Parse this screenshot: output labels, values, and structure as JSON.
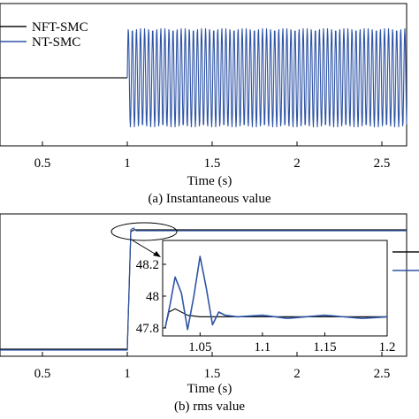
{
  "panels": [
    {
      "caption": "(a) Instantaneous value",
      "xlabel": "Time (s)",
      "xticks": [
        "0.5",
        "1",
        "1.5",
        "2",
        "2.5"
      ],
      "legend": [
        "NFT-SMC",
        "NT-SMC"
      ]
    },
    {
      "caption": "(b) rms value",
      "xlabel": "Time (s)",
      "xticks": [
        "0.5",
        "1",
        "1.5",
        "2",
        "2.5"
      ],
      "inset_xticks": [
        "1.05",
        "1.1",
        "1.15",
        "1.2"
      ],
      "inset_yticks": [
        "48.2",
        "48",
        "47.8"
      ]
    }
  ],
  "colors": {
    "nft": "#111111",
    "nt": "#2e54a6",
    "axis": "#000000"
  },
  "chart_data": [
    {
      "type": "line",
      "x_range": [
        0.3,
        2.7
      ],
      "series": [
        {
          "name": "NFT-SMC",
          "x": [
            0.3,
            1.0,
            1.0,
            2.7
          ],
          "values": [
            0,
            0,
            1,
            1
          ],
          "note_shape": "flat before 1 s, sinusoidal oscillation after"
        },
        {
          "name": "NT-SMC",
          "x": [
            0.3,
            1.0,
            1.0,
            2.7
          ],
          "values": [
            0,
            0,
            1,
            1
          ]
        }
      ],
      "oscillation_start": 1.0
    },
    {
      "type": "line",
      "x_range": [
        0.3,
        2.7
      ],
      "series": [
        {
          "name": "NFT-SMC",
          "x": [
            0.3,
            1.0,
            1.02,
            2.7
          ],
          "values": [
            0,
            0,
            1,
            1
          ]
        },
        {
          "name": "NT-SMC",
          "x": [
            0.3,
            1.0,
            1.02,
            2.7
          ],
          "values": [
            0,
            0,
            1,
            1
          ]
        }
      ],
      "inset": {
        "xlim": [
          1.02,
          1.2
        ],
        "ylim": [
          47.75,
          48.35
        ],
        "series": [
          {
            "name": "NFT-SMC",
            "x": [
              1.022,
              1.025,
              1.03,
              1.035,
              1.04,
              1.05,
              1.06,
              1.08,
              1.1,
              1.12,
              1.15,
              1.18,
              1.2
            ],
            "values": [
              47.8,
              47.9,
              47.92,
              47.9,
              47.88,
              47.87,
              47.87,
              47.87,
              47.87,
              47.87,
              47.87,
              47.87,
              47.87
            ]
          },
          {
            "name": "NT-SMC",
            "x": [
              1.022,
              1.026,
              1.03,
              1.035,
              1.04,
              1.045,
              1.05,
              1.055,
              1.06,
              1.065,
              1.07,
              1.08,
              1.1,
              1.12,
              1.15,
              1.18,
              1.2
            ],
            "values": [
              47.8,
              47.95,
              48.12,
              48.02,
              47.79,
              48.0,
              48.25,
              48.05,
              47.82,
              47.9,
              47.88,
              47.87,
              47.88,
              47.86,
              47.88,
              47.86,
              47.87
            ]
          }
        ]
      }
    }
  ]
}
